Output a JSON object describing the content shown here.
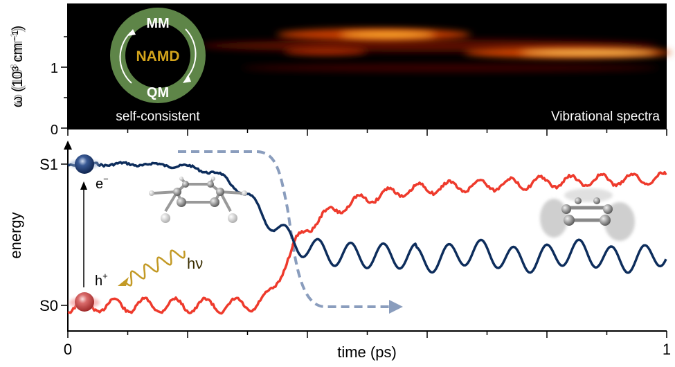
{
  "top_panel": {
    "ylabel": "ω (10³ cm⁻¹)",
    "ylabel_parts": {
      "main": "ω (10",
      "sup1": "3",
      "mid": " cm",
      "sup2": "-1",
      "end": ")"
    },
    "yticks": [
      "0",
      "1"
    ],
    "ylim": [
      0,
      2
    ],
    "cycle": {
      "top": "MM",
      "center": "NAMD",
      "bottom": "QM"
    },
    "left_caption": "self-consistent",
    "right_caption": "Vibrational spectra"
  },
  "bottom_panel": {
    "ylabel": "energy",
    "xlabel": "time (ps)",
    "xticks": [
      "0",
      "1"
    ],
    "xlim": [
      0,
      1
    ],
    "levels": [
      "S1",
      "S0"
    ],
    "electron_label": "e",
    "electron_sup": "−",
    "hole_label": "h",
    "hole_sup": "+",
    "photon_label": "hν"
  },
  "colors": {
    "s1_curve": "#0d2d5c",
    "s0_curve": "#ee3a2c",
    "population_arrow": "#8a9dbd",
    "ring": "#5e8548",
    "namd_text": "#d4a51c",
    "photon": "#c39a26"
  }
}
